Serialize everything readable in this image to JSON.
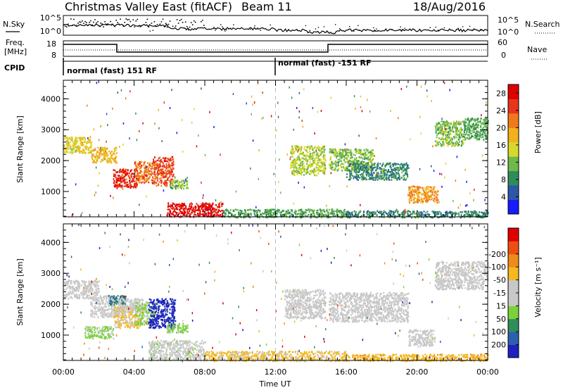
{
  "header": {
    "title": "Christmas Valley East (fitACF)",
    "beam": "Beam 11",
    "date": "18/Aug/2016"
  },
  "top_panels": {
    "nsky": {
      "label": "N.Sky",
      "ticks": [
        "10^5",
        "10^0"
      ],
      "right_ticks": [
        "10^5",
        "10^0"
      ],
      "right_label": "N.Search"
    },
    "freq": {
      "label_line1": "Freq.",
      "label_line2": "[MHz]",
      "ticks": [
        "18",
        "8"
      ],
      "right_ticks": [
        "60",
        "0"
      ],
      "right_label": "Nave"
    },
    "cpid": {
      "label": "CPID",
      "segments": [
        {
          "text": "normal (fast) 151 RF",
          "start_hour": 0
        },
        {
          "text": "normal (fast) -151 RF",
          "start_hour": 12
        }
      ]
    }
  },
  "colors": {
    "power_scale": [
      "#1a1aff",
      "#2a57a8",
      "#2f8c5b",
      "#6fb84a",
      "#d8d82a",
      "#f2b01e",
      "#f07a1a",
      "#e8341a",
      "#e00000"
    ],
    "velocity_scale": [
      "#2020c0",
      "#2d5fae",
      "#2f8c5b",
      "#7ad23a",
      "#c8c8c8",
      "#c8c8c8",
      "#f5b81e",
      "#f08a1a",
      "#ee4f10",
      "#e00000"
    ]
  },
  "chart_data": [
    {
      "type": "heatmap",
      "name": "power",
      "xlabel": "",
      "ylabel": "Slant Range [km]",
      "xlim": [
        0,
        24
      ],
      "ylim": [
        180,
        4600
      ],
      "yticks": [
        1000,
        2000,
        3000,
        4000
      ],
      "colorbar": {
        "label": "Power [dB]",
        "ticks": [
          4,
          8,
          12,
          16,
          20,
          24,
          28
        ],
        "range": [
          0,
          30
        ]
      },
      "regions": [
        {
          "t0": 0.0,
          "t1": 1.6,
          "r0": 2250,
          "r1": 2800,
          "v": 16
        },
        {
          "t0": 1.6,
          "t1": 3.0,
          "r0": 1950,
          "r1": 2450,
          "v": 18
        },
        {
          "t0": 2.8,
          "t1": 4.2,
          "r0": 1150,
          "r1": 1750,
          "v": 26
        },
        {
          "t0": 4.0,
          "t1": 5.0,
          "r0": 1300,
          "r1": 2000,
          "v": 22
        },
        {
          "t0": 5.0,
          "t1": 6.2,
          "r0": 1200,
          "r1": 2150,
          "v": 24
        },
        {
          "t0": 6.0,
          "t1": 7.0,
          "r0": 1100,
          "r1": 1400,
          "v": 12
        },
        {
          "t0": 5.8,
          "t1": 9.0,
          "r0": 200,
          "r1": 650,
          "v": 28
        },
        {
          "t0": 9.0,
          "t1": 16.0,
          "r0": 180,
          "r1": 450,
          "v": 10
        },
        {
          "t0": 16.0,
          "t1": 24.0,
          "r0": 180,
          "r1": 400,
          "v": 8
        },
        {
          "t0": 12.8,
          "t1": 14.8,
          "r0": 1550,
          "r1": 2500,
          "v": 14
        },
        {
          "t0": 15.0,
          "t1": 17.5,
          "r0": 1700,
          "r1": 2400,
          "v": 12
        },
        {
          "t0": 16.0,
          "t1": 19.5,
          "r0": 1400,
          "r1": 1950,
          "v": 8
        },
        {
          "t0": 19.5,
          "t1": 21.2,
          "r0": 650,
          "r1": 1200,
          "v": 20
        },
        {
          "t0": 21.0,
          "t1": 22.6,
          "r0": 2500,
          "r1": 3300,
          "v": 12
        },
        {
          "t0": 22.6,
          "t1": 24.0,
          "r0": 2700,
          "r1": 3400,
          "v": 10
        }
      ]
    },
    {
      "type": "heatmap",
      "name": "velocity",
      "xlabel": "Time UT",
      "ylabel": "Slant Range [km]",
      "xlim": [
        0,
        24
      ],
      "ylim": [
        180,
        4600
      ],
      "yticks": [
        1000,
        2000,
        3000,
        4000
      ],
      "xticks": [
        "00:00",
        "04:00",
        "08:00",
        "12:00",
        "16:00",
        "20:00",
        "00:00"
      ],
      "colorbar": {
        "label": "Velocity [m s⁻¹]",
        "ticks": [
          200,
          100,
          50,
          15,
          -15,
          -50,
          -100,
          -200
        ],
        "range": [
          -250,
          250
        ]
      },
      "regions": [
        {
          "t0": 0.0,
          "t1": 2.0,
          "r0": 2200,
          "r1": 2800,
          "v": 0
        },
        {
          "t0": 1.5,
          "t1": 3.5,
          "r0": 1600,
          "r1": 2300,
          "v": 5
        },
        {
          "t0": 2.5,
          "t1": 3.5,
          "r0": 2000,
          "r1": 2300,
          "v": 150
        },
        {
          "t0": 2.8,
          "t1": 4.5,
          "r0": 1250,
          "r1": 1950,
          "v": -60
        },
        {
          "t0": 3.0,
          "t1": 4.5,
          "r0": 1800,
          "r1": 2200,
          "v": -20
        },
        {
          "t0": 4.0,
          "t1": 5.2,
          "r0": 1350,
          "r1": 2100,
          "v": 60
        },
        {
          "t0": 4.8,
          "t1": 6.3,
          "r0": 1250,
          "r1": 2200,
          "v": 220
        },
        {
          "t0": 5.8,
          "t1": 7.0,
          "r0": 1100,
          "r1": 1400,
          "v": 70
        },
        {
          "t0": 1.2,
          "t1": 2.8,
          "r0": 900,
          "r1": 1300,
          "v": 60
        },
        {
          "t0": 4.8,
          "t1": 8.0,
          "r0": 200,
          "r1": 850,
          "v": 25
        },
        {
          "t0": 8.0,
          "t1": 16.0,
          "r0": 180,
          "r1": 500,
          "v": -60
        },
        {
          "t0": 16.0,
          "t1": 24.0,
          "r0": 180,
          "r1": 400,
          "v": -80
        },
        {
          "t0": 12.5,
          "t1": 14.8,
          "r0": 1550,
          "r1": 2500,
          "v": 0
        },
        {
          "t0": 15.0,
          "t1": 19.5,
          "r0": 1450,
          "r1": 2400,
          "v": 5
        },
        {
          "t0": 19.5,
          "t1": 21.0,
          "r0": 650,
          "r1": 1200,
          "v": 0
        },
        {
          "t0": 21.0,
          "t1": 24.0,
          "r0": 2500,
          "r1": 3400,
          "v": 0
        }
      ]
    }
  ]
}
